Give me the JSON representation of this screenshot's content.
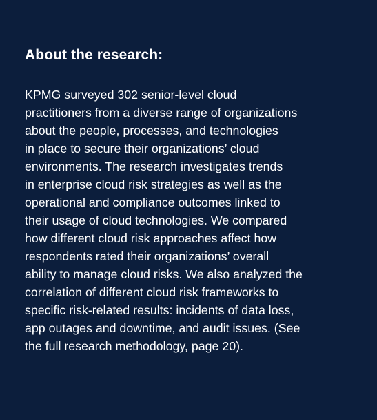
{
  "colors": {
    "background": "#0c1e3c",
    "text": "#ffffff"
  },
  "heading": "About the research:",
  "body_lines": [
    "KPMG surveyed 302 senior-level cloud",
    "practitioners from a diverse range of organizations",
    "about the people, processes, and technologies",
    "in place to secure their organizations’ cloud",
    "environments. The research investigates trends",
    "in enterprise cloud risk strategies as well as the",
    "operational and compliance outcomes linked to",
    "their usage of cloud technologies. We compared",
    "how different cloud risk approaches affect how",
    "respondents rated their organizations’ overall",
    "ability to manage cloud risks. We also analyzed the",
    "correlation of different cloud risk frameworks to",
    "specific risk-related results: incidents of data loss,",
    "app outages and downtime, and audit issues. (See",
    "the full research methodology, page 20)."
  ]
}
